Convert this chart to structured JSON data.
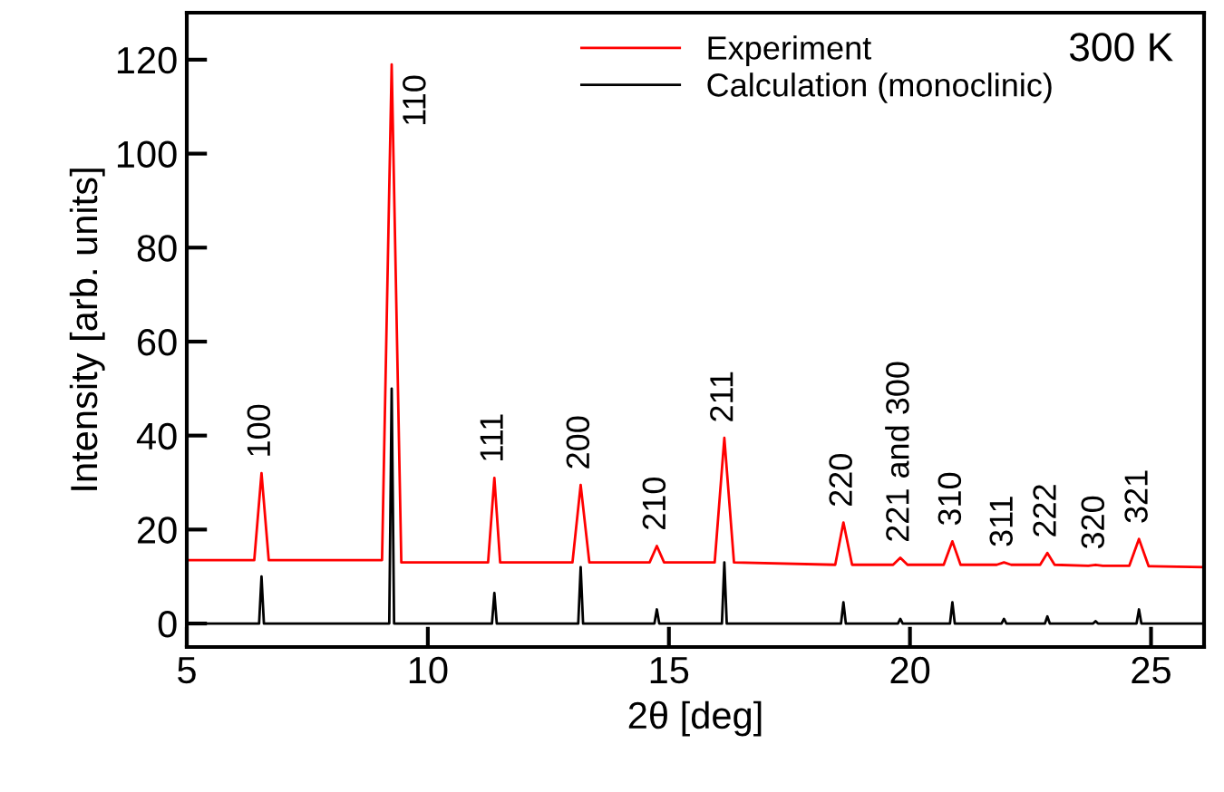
{
  "chart_data": {
    "type": "line",
    "xlabel": "2θ [deg]",
    "ylabel": "Intensity [arb. units]",
    "xlim": [
      5,
      26.1
    ],
    "ylim": [
      -5,
      130
    ],
    "xticks": [
      5,
      10,
      15,
      20,
      25
    ],
    "yticks": [
      0,
      20,
      40,
      60,
      80,
      100,
      120
    ],
    "grid": false,
    "legend": "top",
    "marker": "none",
    "line_style": "solid",
    "series": [
      {
        "name": "Experiment",
        "color": "#ff0000",
        "x": [
          5,
          6.4,
          6.55,
          6.7,
          9.05,
          9.25,
          9.45,
          11.25,
          11.38,
          11.5,
          13.0,
          13.17,
          13.35,
          14.6,
          14.75,
          14.9,
          15.95,
          16.15,
          16.35,
          18.45,
          18.62,
          18.8,
          19.65,
          19.8,
          19.95,
          20.7,
          20.88,
          21.05,
          21.8,
          21.95,
          22.1,
          22.7,
          22.85,
          23.0,
          23.7,
          23.85,
          24.0,
          24.55,
          24.75,
          24.95,
          26.1
        ],
        "values": [
          13.5,
          13.5,
          32,
          13.5,
          13.5,
          119,
          13,
          13,
          31,
          13,
          13,
          29.5,
          13,
          13,
          16.5,
          13,
          13,
          39.5,
          13,
          12.5,
          21.5,
          12.5,
          12.5,
          14,
          12.5,
          12.5,
          17.5,
          12.5,
          12.5,
          13,
          12.5,
          12.5,
          15,
          12.5,
          12.3,
          12.5,
          12.3,
          12.3,
          18,
          12.2,
          12
        ]
      },
      {
        "name": "Calculation (monoclinic)",
        "color": "#000000",
        "x": [
          5,
          6.5,
          6.55,
          6.6,
          9.2,
          9.25,
          9.3,
          11.33,
          11.38,
          11.43,
          13.12,
          13.17,
          13.22,
          14.7,
          14.75,
          14.8,
          16.1,
          16.15,
          16.2,
          18.57,
          18.62,
          18.67,
          19.75,
          19.8,
          19.85,
          20.83,
          20.88,
          20.93,
          21.9,
          21.95,
          22.0,
          22.8,
          22.85,
          22.9,
          23.8,
          23.85,
          23.9,
          24.7,
          24.75,
          24.8,
          26.1
        ],
        "values": [
          0,
          0,
          10,
          0,
          0,
          50,
          0,
          0,
          6.5,
          0,
          0,
          12,
          0,
          0,
          3,
          0,
          0,
          13,
          0,
          0,
          4.5,
          0,
          0,
          1,
          0,
          0,
          4.5,
          0,
          0,
          1,
          0,
          0,
          1.5,
          0,
          0,
          0.5,
          0,
          0,
          3,
          0,
          0
        ]
      }
    ],
    "annotations": [
      {
        "text": "100",
        "x": 6.55,
        "y": 32
      },
      {
        "text": "110",
        "x": 9.25,
        "y": 119
      },
      {
        "text": "111",
        "x": 11.38,
        "y": 31
      },
      {
        "text": "200",
        "x": 13.17,
        "y": 29.5
      },
      {
        "text": "210",
        "x": 14.75,
        "y": 16.5
      },
      {
        "text": "211",
        "x": 16.15,
        "y": 39.5
      },
      {
        "text": "220",
        "x": 18.62,
        "y": 21.5
      },
      {
        "text": "221 and 300",
        "x": 19.8,
        "y": 14
      },
      {
        "text": "310",
        "x": 20.88,
        "y": 17.5
      },
      {
        "text": "311",
        "x": 21.95,
        "y": 13
      },
      {
        "text": "222",
        "x": 22.85,
        "y": 15
      },
      {
        "text": "320",
        "x": 23.85,
        "y": 12.5
      },
      {
        "text": "321",
        "x": 24.75,
        "y": 18
      },
      "300 K"
    ]
  }
}
